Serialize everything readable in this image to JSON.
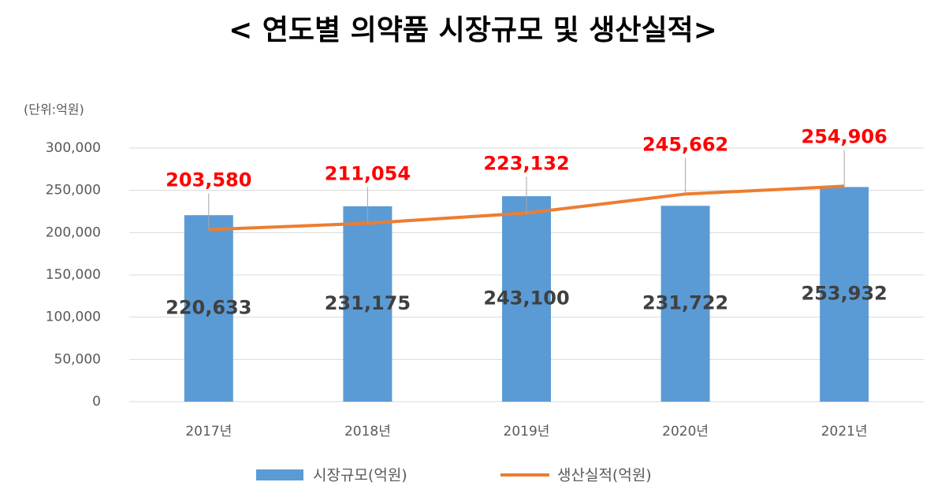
{
  "chart_data": {
    "type": "combo",
    "title": "< 연도별 의약품 시장규모 및 생산실적>",
    "unit_label": "(단위:억원)",
    "categories": [
      "2017년",
      "2018년",
      "2019년",
      "2020년",
      "2021년"
    ],
    "series": [
      {
        "name": "시장규모(억원)",
        "type": "bar",
        "color": "#5b9bd5",
        "values": [
          220633,
          231175,
          243100,
          231722,
          253932
        ],
        "value_labels": [
          "220,633",
          "231,175",
          "243,100",
          "231,722",
          "253,932"
        ],
        "label_color": "#404040"
      },
      {
        "name": "생산실적(억원)",
        "type": "line",
        "color": "#ed7d31",
        "values": [
          203580,
          211054,
          223132,
          245662,
          254906
        ],
        "value_labels": [
          "203,580",
          "211,054",
          "223,132",
          "245,662",
          "254,906"
        ],
        "label_color": "#ff0000"
      }
    ],
    "ylim": [
      0,
      300000
    ],
    "yticks": [
      0,
      {
        "value": 50000,
        "label": "50,000"
      },
      {
        "value": 100000,
        "label": "100,000"
      },
      {
        "value": 150000,
        "label": "150,000"
      },
      {
        "value": 200000,
        "label": "200,000"
      },
      {
        "value": 250000,
        "label": "250,000"
      },
      {
        "value": 300000,
        "label": "300,000"
      }
    ],
    "grid": true,
    "legend": "bottom"
  }
}
